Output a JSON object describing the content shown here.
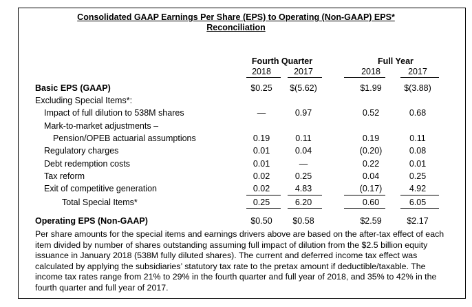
{
  "title_line1": "Consolidated GAAP Earnings Per Share (EPS) to Operating (Non-GAAP) EPS*",
  "title_line2": "Reconciliation",
  "groups": {
    "fourth_quarter": "Fourth Quarter",
    "full_year": "Full Year"
  },
  "years": [
    "2018",
    "2017",
    "2018",
    "2017"
  ],
  "rows": [
    {
      "label": "Basic EPS (GAAP)",
      "values": [
        "$0.25",
        "$(5.62)",
        "$1.99",
        "$(3.88)"
      ]
    },
    {
      "label": "Excluding Special Items*:",
      "values": [
        "",
        "",
        "",
        ""
      ]
    },
    {
      "label": "Impact of full dilution to 538M shares",
      "values": [
        "—",
        "0.97",
        "0.52",
        "0.68"
      ]
    },
    {
      "label": "Mark-to-market adjustments –",
      "values": [
        "",
        "",
        "",
        ""
      ]
    },
    {
      "label": "Pension/OPEB actuarial assumptions",
      "values": [
        "0.19",
        "0.11",
        "0.19",
        "0.11"
      ]
    },
    {
      "label": "Regulatory charges",
      "values": [
        "0.01",
        "0.04",
        "(0.20)",
        "0.08"
      ]
    },
    {
      "label": "Debt redemption costs",
      "values": [
        "0.01",
        "—",
        "0.22",
        "0.01"
      ]
    },
    {
      "label": "Tax reform",
      "values": [
        "0.02",
        "0.25",
        "0.04",
        "0.25"
      ]
    },
    {
      "label": "Exit of competitive generation",
      "values": [
        "0.02",
        "4.83",
        "(0.17)",
        "4.92"
      ]
    },
    {
      "label": "Total Special Items*",
      "values": [
        "0.25",
        "6.20",
        "0.60",
        "6.05"
      ]
    },
    {
      "label": "Operating EPS (Non-GAAP)",
      "values": [
        "$0.50",
        "$0.58",
        "$2.59",
        "$2.17"
      ]
    }
  ],
  "footnote": "Per share amounts for the special items and earnings drivers above are based on the after-tax effect of each item divided by number of shares outstanding assuming full impact of dilution from the $2.5 billion equity issuance in January 2018 (538M fully diluted shares). The current and deferred income tax effect was calculated by applying the subsidiaries’ statutory tax rate to the pretax amount if deductible/taxable. The income tax rates range from 21% to 29% in the fourth quarter and full year of 2018, and 35% to 42% in the fourth quarter and full year of 2017."
}
